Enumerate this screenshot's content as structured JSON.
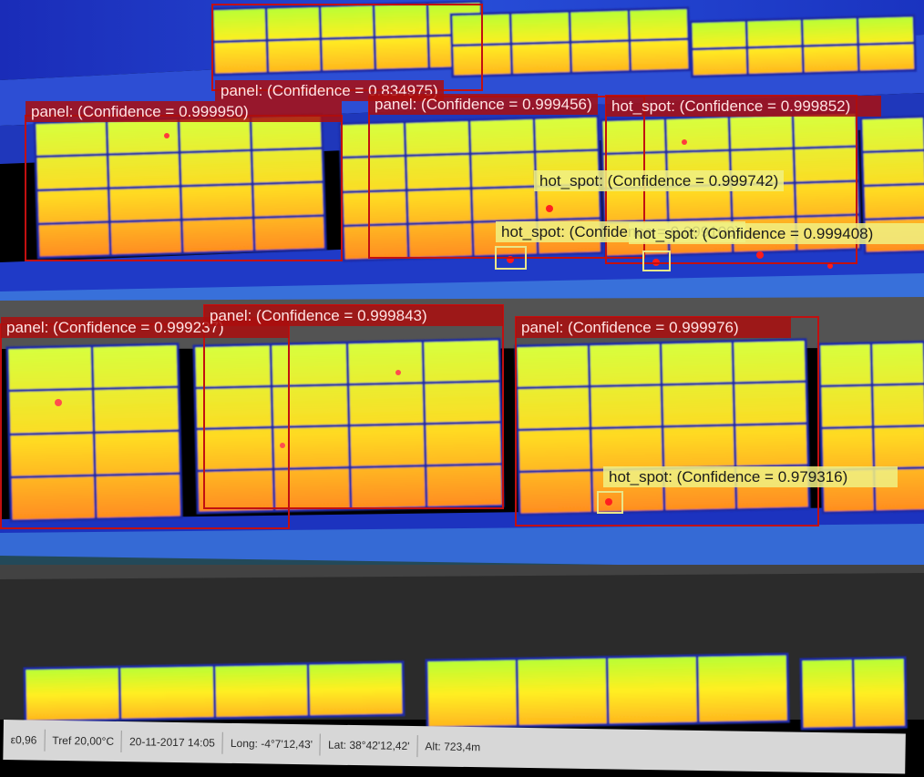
{
  "image": {
    "type": "thermal-drone-photo",
    "subject": "solar panel arrays with detections",
    "background_color": "#000000"
  },
  "colors": {
    "ground_dark": "#2634c7",
    "ground_light": "#6fd0ff",
    "panel_frame": "#1e2aa5",
    "panel_cell": "#f5ef2f",
    "panel_hot": "#ff8f1e",
    "panel_hotspot": "#ff1c1c",
    "panel_box": "#c21010",
    "hotspot_box": "#e9e68a",
    "label_panel_bg": "#aa0e0e",
    "label_hotspot_bg": "#f0f082"
  },
  "detections": {
    "panel_top": "panel: (Confidence = 0.834975)",
    "panel_row2_a": "panel: (Confidence = 0.999950)",
    "panel_row2_b": "panel: (Confidence = 0.999456)",
    "panel_row2_c": "hot_spot: (Confidence = 0.999852)",
    "hotspot_a": "hot_spot: (Confidence = 0.999742)",
    "hotspot_b": "hot_spot: (Confidence = 0.999100)",
    "hotspot_c": "hot_spot: (Confidence = 0.999408)",
    "panel_row3_a": "panel: (Confidence = 0.999237)",
    "panel_row3_b": "panel: (Confidence = 0.999843)",
    "panel_row3_c": "panel: (Confidence = 0.999976)",
    "hotspot_d": "hot_spot: (Confidence = 0.979316)"
  },
  "status_bar": {
    "emissivity": "ε0,96",
    "temp_ref": "Tref 20,00°C",
    "datetime": "20-11-2017 14:05",
    "longitude": "Long: -4°7'12,43'",
    "latitude": "Lat: 38°42'12,42'",
    "altitude": "Alt: 723,4m"
  }
}
